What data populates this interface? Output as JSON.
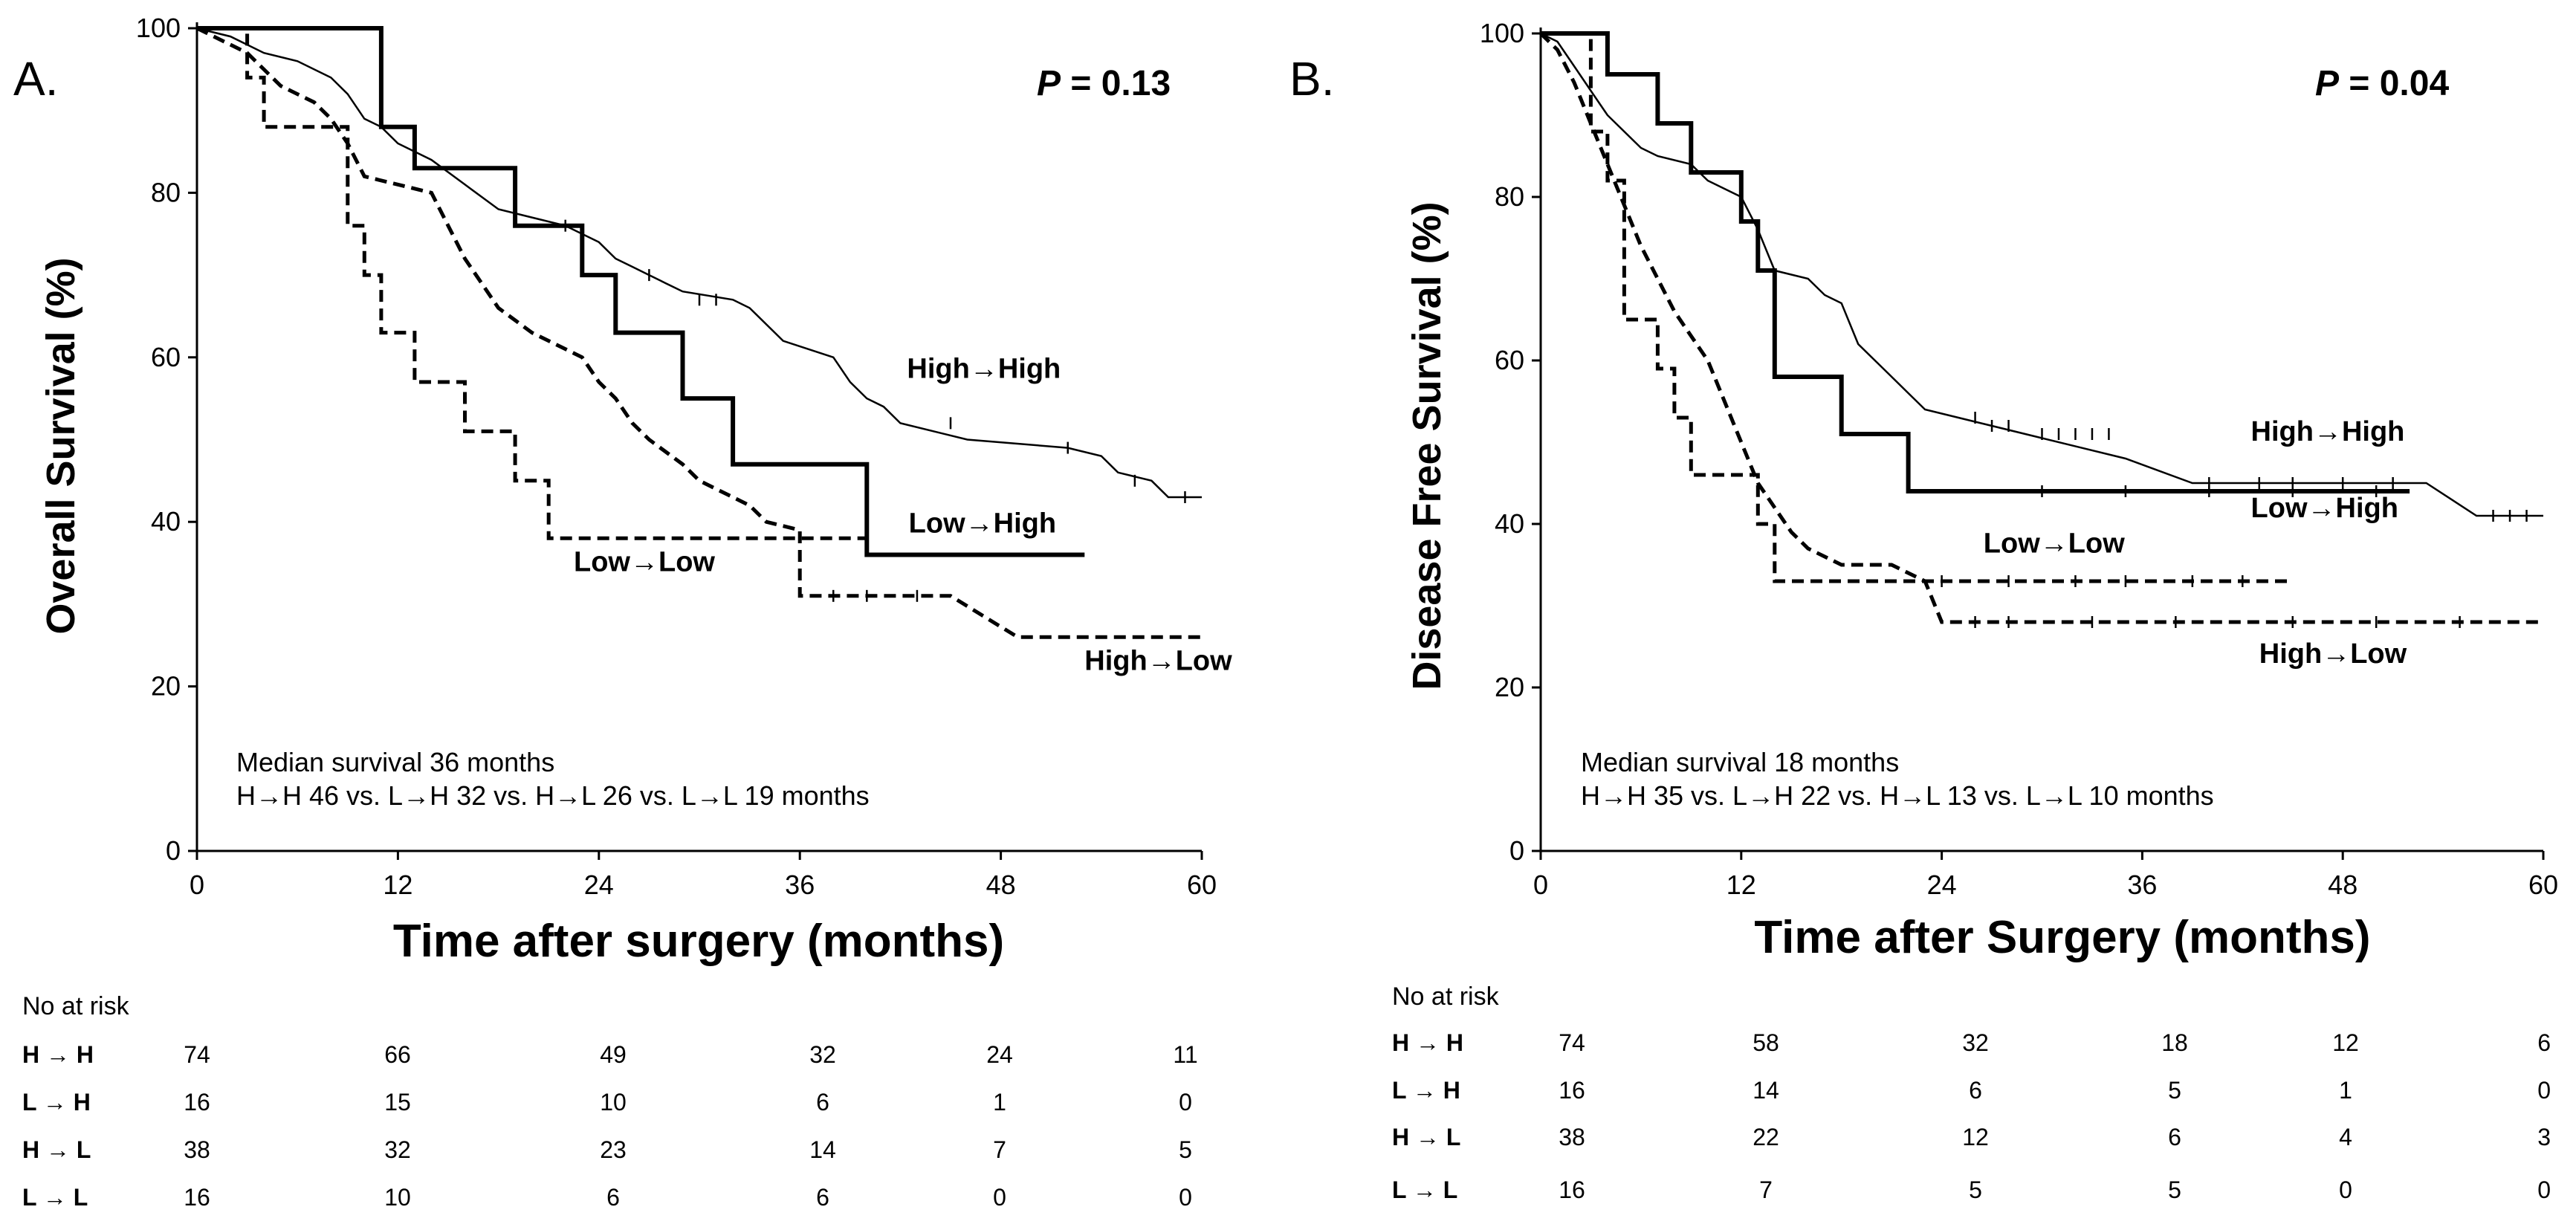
{
  "chart_data": [
    {
      "type": "line",
      "panel_label": "A.",
      "ylabel": "Overall Survival (%)",
      "xlabel": "Time after surgery (months)",
      "p_value": "P = 0.13",
      "x_ticks": [
        "0",
        "12",
        "24",
        "36",
        "48",
        "60"
      ],
      "y_ticks": [
        "0",
        "20",
        "40",
        "60",
        "80",
        "100"
      ],
      "xlim": [
        0,
        60
      ],
      "ylim": [
        0,
        100
      ],
      "note_line1": "Median survival 36 months",
      "note_line2": "H→H 46 vs. L→H 32 vs. H→L 26 vs. L→L 19 months",
      "series": [
        {
          "name": "High→High",
          "style": "thin",
          "label": "High→High",
          "label_pos": [
            42.4,
            57.5
          ],
          "points": [
            [
              0,
              100
            ],
            [
              2,
              99
            ],
            [
              4,
              97
            ],
            [
              6,
              96
            ],
            [
              8,
              94
            ],
            [
              9,
              92
            ],
            [
              10,
              89
            ],
            [
              11,
              88
            ],
            [
              12,
              86
            ],
            [
              14,
              84
            ],
            [
              16,
              81
            ],
            [
              18,
              78
            ],
            [
              20,
              77
            ],
            [
              22,
              76
            ],
            [
              24,
              74
            ],
            [
              25,
              72
            ],
            [
              26,
              71
            ],
            [
              27,
              70
            ],
            [
              28,
              69
            ],
            [
              29,
              68
            ],
            [
              32,
              67
            ],
            [
              33,
              66
            ],
            [
              35,
              62
            ],
            [
              38,
              60
            ],
            [
              39,
              57
            ],
            [
              40,
              55
            ],
            [
              41,
              54
            ],
            [
              42,
              52
            ],
            [
              46,
              50
            ],
            [
              52,
              49
            ],
            [
              54,
              48
            ],
            [
              55,
              46
            ],
            [
              57,
              45
            ],
            [
              58,
              43
            ],
            [
              60,
              43
            ]
          ],
          "censors": [
            [
              22,
              76
            ],
            [
              27,
              70
            ],
            [
              30,
              67
            ],
            [
              31,
              67
            ],
            [
              45,
              52
            ],
            [
              52,
              49
            ],
            [
              56,
              45
            ],
            [
              59,
              43
            ]
          ]
        },
        {
          "name": "Low→High",
          "style": "thick",
          "label": "Low→High",
          "label_pos": [
            42.5,
            38.7
          ],
          "points": [
            [
              0,
              100
            ],
            [
              11,
              100
            ],
            [
              11,
              88
            ],
            [
              13,
              88
            ],
            [
              13,
              83
            ],
            [
              19,
              83
            ],
            [
              19,
              76
            ],
            [
              23,
              76
            ],
            [
              23,
              70
            ],
            [
              25,
              70
            ],
            [
              25,
              63
            ],
            [
              29,
              63
            ],
            [
              29,
              55
            ],
            [
              32,
              55
            ],
            [
              32,
              47
            ],
            [
              40,
              47
            ],
            [
              40,
              36
            ],
            [
              53,
              36
            ]
          ],
          "censors": []
        },
        {
          "name": "High→Low",
          "style": "dash",
          "label": "High→Low",
          "label_pos": [
            53,
            22
          ],
          "points": [
            [
              0,
              100
            ],
            [
              3,
              97
            ],
            [
              4,
              95
            ],
            [
              5,
              93
            ],
            [
              6,
              92
            ],
            [
              7,
              91
            ],
            [
              8,
              89
            ],
            [
              9,
              86
            ],
            [
              10,
              82
            ],
            [
              14,
              80
            ],
            [
              15,
              76
            ],
            [
              16,
              72
            ],
            [
              17,
              69
            ],
            [
              18,
              66
            ],
            [
              20,
              63
            ],
            [
              23,
              60
            ],
            [
              24,
              57
            ],
            [
              25,
              55
            ],
            [
              26,
              52
            ],
            [
              27,
              50
            ],
            [
              29,
              47
            ],
            [
              30,
              45
            ],
            [
              31,
              44
            ],
            [
              33,
              42
            ],
            [
              34,
              40
            ],
            [
              36,
              39
            ],
            [
              36,
              31
            ],
            [
              41,
              31
            ],
            [
              45,
              31
            ],
            [
              49,
              26
            ],
            [
              60,
              26
            ]
          ],
          "censors": [
            [
              38,
              31
            ],
            [
              40,
              31
            ],
            [
              43,
              31
            ]
          ]
        },
        {
          "name": "Low→Low",
          "style": "dash",
          "label": "Low→Low",
          "label_pos": [
            22.5,
            34
          ],
          "points": [
            [
              0,
              100
            ],
            [
              3,
              100
            ],
            [
              3,
              94
            ],
            [
              4,
              94
            ],
            [
              4,
              88
            ],
            [
              9,
              88
            ],
            [
              9,
              76
            ],
            [
              10,
              76
            ],
            [
              10,
              70
            ],
            [
              11,
              70
            ],
            [
              11,
              63
            ],
            [
              13,
              63
            ],
            [
              13,
              57
            ],
            [
              16,
              57
            ],
            [
              16,
              51
            ],
            [
              19,
              51
            ],
            [
              19,
              45
            ],
            [
              21,
              45
            ],
            [
              21,
              38
            ],
            [
              40,
              38
            ]
          ],
          "censors": []
        }
      ],
      "risk_title": "No at risk",
      "risk_labels": [
        "H → H",
        "L → H",
        "H → L",
        "L → L"
      ],
      "risk_rows": [
        [
          "74",
          "66",
          "49",
          "32",
          "24",
          "11"
        ],
        [
          "16",
          "15",
          "10",
          "6",
          "1",
          "0"
        ],
        [
          "38",
          "32",
          "23",
          "14",
          "7",
          "5"
        ],
        [
          "16",
          "10",
          "6",
          "6",
          "0",
          "0"
        ]
      ]
    },
    {
      "type": "line",
      "panel_label": "B.",
      "ylabel": "Disease Free Survival (%)",
      "xlabel": "Time after Surgery (months)",
      "p_value": "P = 0.04",
      "x_ticks": [
        "0",
        "12",
        "24",
        "36",
        "48",
        "60"
      ],
      "y_ticks": [
        "0",
        "20",
        "40",
        "60",
        "80",
        "100"
      ],
      "xlim": [
        0,
        60
      ],
      "ylim": [
        0,
        100
      ],
      "note_line1": "Median survival 18 months",
      "note_line2": "H→H 35 vs. L→H 22 vs. H→L 13 vs. L→L 10 months",
      "series": [
        {
          "name": "High→High",
          "style": "thin",
          "label": "High→High",
          "label_pos": [
            42.5,
            50.2
          ],
          "points": [
            [
              0,
              100
            ],
            [
              1,
              99
            ],
            [
              2,
              96
            ],
            [
              3,
              93
            ],
            [
              4,
              90
            ],
            [
              5,
              88
            ],
            [
              6,
              86
            ],
            [
              7,
              85
            ],
            [
              9,
              84
            ],
            [
              10,
              82
            ],
            [
              12,
              80
            ],
            [
              13,
              76
            ],
            [
              14,
              71
            ],
            [
              16,
              70
            ],
            [
              17,
              68
            ],
            [
              18,
              67
            ],
            [
              19,
              62
            ],
            [
              20,
              60
            ],
            [
              21,
              58
            ],
            [
              22,
              56
            ],
            [
              23,
              54
            ],
            [
              25,
              53
            ],
            [
              27,
              52
            ],
            [
              29,
              51
            ],
            [
              35,
              48
            ],
            [
              39,
              45
            ],
            [
              46,
              45
            ],
            [
              53,
              45
            ],
            [
              56,
              41
            ],
            [
              60,
              41
            ]
          ],
          "censors": [
            [
              26,
              53
            ],
            [
              27,
              52
            ],
            [
              28,
              52
            ],
            [
              30,
              51
            ],
            [
              31,
              51
            ],
            [
              32,
              51
            ],
            [
              33,
              51
            ],
            [
              34,
              51
            ],
            [
              40,
              45
            ],
            [
              43,
              45
            ],
            [
              45,
              45
            ],
            [
              48,
              45
            ],
            [
              51,
              45
            ],
            [
              57,
              41
            ],
            [
              58,
              41
            ],
            [
              59,
              41
            ]
          ]
        },
        {
          "name": "Low→High",
          "style": "thick",
          "label": "Low→High",
          "label_pos": [
            42.5,
            40.8
          ],
          "points": [
            [
              0,
              100
            ],
            [
              4,
              100
            ],
            [
              4,
              95
            ],
            [
              7,
              95
            ],
            [
              7,
              89
            ],
            [
              9,
              89
            ],
            [
              9,
              83
            ],
            [
              12,
              83
            ],
            [
              12,
              77
            ],
            [
              13,
              77
            ],
            [
              13,
              71
            ],
            [
              14,
              71
            ],
            [
              14,
              58
            ],
            [
              18,
              58
            ],
            [
              18,
              51
            ],
            [
              22,
              51
            ],
            [
              22,
              44
            ],
            [
              52,
              44
            ]
          ],
          "censors": [
            [
              30,
              44
            ],
            [
              35,
              44
            ],
            [
              40,
              44
            ],
            [
              45,
              44
            ],
            [
              50,
              44
            ]
          ]
        },
        {
          "name": "High→Low",
          "style": "dash",
          "label": "High→Low",
          "label_pos": [
            43,
            23
          ],
          "points": [
            [
              0,
              100
            ],
            [
              1,
              98
            ],
            [
              2,
              94
            ],
            [
              3,
              89
            ],
            [
              4,
              84
            ],
            [
              5,
              79
            ],
            [
              6,
              74
            ],
            [
              7,
              70
            ],
            [
              8,
              66
            ],
            [
              9,
              63
            ],
            [
              10,
              60
            ],
            [
              11,
              55
            ],
            [
              12,
              50
            ],
            [
              13,
              45
            ],
            [
              14,
              42
            ],
            [
              15,
              39
            ],
            [
              16,
              37
            ],
            [
              17,
              36
            ],
            [
              18,
              35
            ],
            [
              21,
              35
            ],
            [
              23,
              33
            ],
            [
              24,
              28
            ],
            [
              60,
              28
            ]
          ],
          "censors": [
            [
              26,
              28
            ],
            [
              28,
              28
            ],
            [
              33,
              28
            ],
            [
              38,
              28
            ],
            [
              45,
              28
            ],
            [
              50,
              28
            ],
            [
              55,
              28
            ]
          ]
        },
        {
          "name": "Low→Low",
          "style": "dash",
          "label": "Low→Low",
          "label_pos": [
            26.5,
            36.5
          ],
          "points": [
            [
              0,
              100
            ],
            [
              3,
              100
            ],
            [
              3,
              88
            ],
            [
              4,
              88
            ],
            [
              4,
              82
            ],
            [
              5,
              82
            ],
            [
              5,
              65
            ],
            [
              7,
              65
            ],
            [
              7,
              59
            ],
            [
              8,
              59
            ],
            [
              8,
              53
            ],
            [
              9,
              53
            ],
            [
              9,
              46
            ],
            [
              13,
              46
            ],
            [
              13,
              40
            ],
            [
              14,
              40
            ],
            [
              14,
              33
            ],
            [
              45,
              33
            ]
          ],
          "censors": [
            [
              24,
              33
            ],
            [
              28,
              33
            ],
            [
              32,
              33
            ],
            [
              35,
              33
            ],
            [
              39,
              33
            ],
            [
              42,
              33
            ]
          ]
        }
      ],
      "risk_title": "No at risk",
      "risk_labels": [
        "H → H",
        "L → H",
        "H → L",
        "L → L"
      ],
      "risk_rows": [
        [
          "74",
          "58",
          "32",
          "18",
          "12",
          "6"
        ],
        [
          "16",
          "14",
          "6",
          "5",
          "1",
          "0"
        ],
        [
          "38",
          "22",
          "12",
          "6",
          "4",
          "3"
        ],
        [
          "16",
          "7",
          "5",
          "5",
          "0",
          "0"
        ]
      ]
    }
  ]
}
